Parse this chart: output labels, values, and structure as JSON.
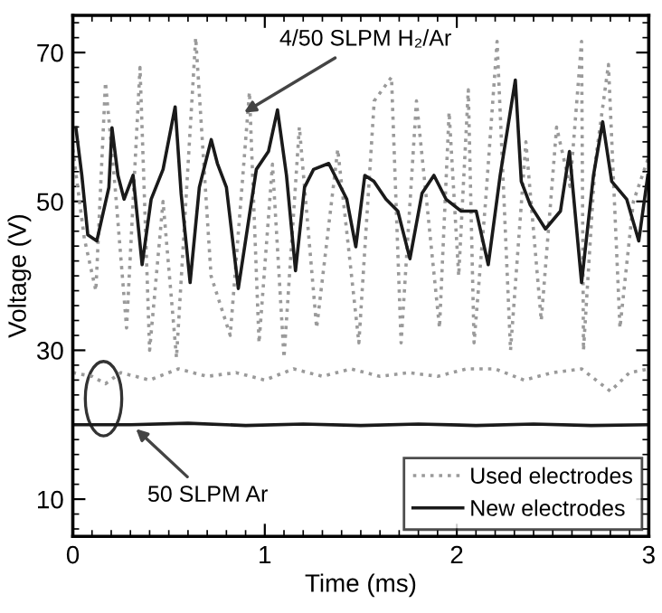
{
  "chart_data": {
    "type": "line",
    "xlabel": "Time (ms)",
    "ylabel": "Voltage (V)",
    "xlim": [
      0,
      3
    ],
    "ylim": [
      5,
      75
    ],
    "xticks": [
      0,
      1,
      2,
      3
    ],
    "yticks": [
      10,
      30,
      50,
      70
    ],
    "grid": false,
    "legend": "bottom right",
    "marker": "none",
    "annotations": [
      {
        "text": "4/50 SLPM H₂/Ar",
        "x": 0.87,
        "y": 61.6
      },
      {
        "text": "50 SLPM Ar",
        "x": 0.31,
        "y": 19.9
      }
    ],
    "series": [
      {
        "name": "Used electrodes",
        "color": "#9a9a9a",
        "line_style": "dotted",
        "x": [
          0,
          0.06,
          0.12,
          0.17,
          0.22,
          0.28,
          0.35,
          0.4,
          0.47,
          0.54,
          0.64,
          0.72,
          0.82,
          0.92,
          0.97,
          1.04,
          1.1,
          1.18,
          1.27,
          1.38,
          1.49,
          1.57,
          1.66,
          1.71,
          1.79,
          1.91,
          1.96,
          2.01,
          2.06,
          2.09,
          2.15,
          2.21,
          2.28,
          2.36,
          2.44,
          2.52,
          2.59,
          2.65,
          2.66,
          2.72,
          2.79,
          2.85,
          2.92,
          3
        ],
        "values": [
          57,
          45,
          38,
          66,
          52,
          33,
          68,
          30,
          50,
          29,
          72,
          40,
          32,
          64.7,
          31,
          55,
          29,
          60,
          33,
          57,
          31,
          63.5,
          66.7,
          31,
          63.5,
          33,
          62,
          40,
          65,
          31,
          50,
          71.5,
          30,
          58,
          34,
          60,
          52,
          71.5,
          30,
          55,
          68.4,
          33,
          50,
          56
        ]
      },
      {
        "name": "New electrodes",
        "color": "#1a1a1a",
        "line_style": "solid",
        "x": [
          0.016,
          0.047,
          0.078,
          0.125,
          0.188,
          0.204,
          0.235,
          0.267,
          0.314,
          0.361,
          0.408,
          0.47,
          0.533,
          0.564,
          0.611,
          0.659,
          0.721,
          0.753,
          0.8,
          0.862,
          0.909,
          0.956,
          1.019,
          1.066,
          1.113,
          1.16,
          1.207,
          1.254,
          1.333,
          1.427,
          1.474,
          1.521,
          1.568,
          1.631,
          1.693,
          1.756,
          1.819,
          1.881,
          1.944,
          2.023,
          2.101,
          2.164,
          2.226,
          2.305,
          2.336,
          2.383,
          2.462,
          2.54,
          2.587,
          2.65,
          2.712,
          2.76,
          2.807,
          2.885,
          2.948,
          2.995
        ],
        "values": [
          59.9,
          53.5,
          45.5,
          44.7,
          51.9,
          59.9,
          53.5,
          50.3,
          53.5,
          41.5,
          50.3,
          54.3,
          62.7,
          51.1,
          39.1,
          51.9,
          58.3,
          55.1,
          51.9,
          38.3,
          46.3,
          54.3,
          56.7,
          62.3,
          53.5,
          40.7,
          51.9,
          54.3,
          55.1,
          50.3,
          43.9,
          53.5,
          52.7,
          50.3,
          48.7,
          42.3,
          51.1,
          53.5,
          50.3,
          48.7,
          48.7,
          41.5,
          53.5,
          66.3,
          52.7,
          49.5,
          46.3,
          48.7,
          56.7,
          39.1,
          53.5,
          60.7,
          52.7,
          50.3,
          44.7,
          53.5
        ]
      },
      {
        "color": "#9a9a9a",
        "line_style": "dotted",
        "x": [
          0,
          0.1,
          0.17,
          0.25,
          0.4,
          0.55,
          0.7,
          0.85,
          1.0,
          1.15,
          1.3,
          1.45,
          1.6,
          1.75,
          1.9,
          2.05,
          2.2,
          2.35,
          2.5,
          2.65,
          2.8,
          2.9,
          3
        ],
        "values": [
          27,
          26.5,
          25.5,
          27,
          26,
          27.5,
          26.5,
          27,
          26,
          27.5,
          26.5,
          27.5,
          26.5,
          27,
          26.5,
          27.5,
          27.5,
          26,
          27,
          27.5,
          24.5,
          27,
          27.5
        ]
      },
      {
        "color": "#1a1a1a",
        "line_style": "solid",
        "x": [
          0,
          0.3,
          0.6,
          0.9,
          1.2,
          1.5,
          1.8,
          2.1,
          2.4,
          2.7,
          3
        ],
        "values": [
          20,
          20,
          20.2,
          19.9,
          20.1,
          19.9,
          20.1,
          19.9,
          20.1,
          19.9,
          20
        ]
      }
    ]
  }
}
